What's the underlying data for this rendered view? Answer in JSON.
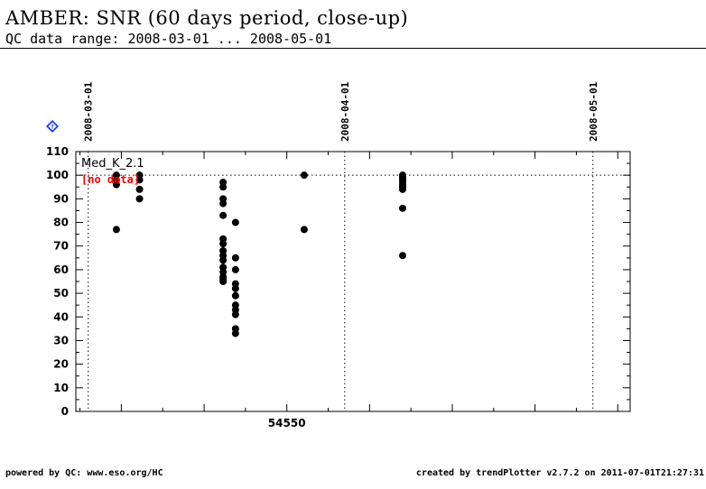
{
  "header": {
    "title": "AMBER: SNR (60 days period, close-up)",
    "subtitle": "QC data range: 2008-03-01 ... 2008-05-01"
  },
  "footer": {
    "left": "powered by QC: www.eso.org/HC",
    "right": "created by trendPlotter v2.7.2 on 2011-07-01T21:27:31"
  },
  "colors": {
    "points": "#000000",
    "nodata": "#ff0000",
    "help_icon": "#1a3cff"
  },
  "icons": {
    "help": "help-diamond-icon"
  },
  "chart_data": {
    "type": "scatter",
    "xlim": [
      54524.5,
      54591.5
    ],
    "ylim": [
      0,
      110
    ],
    "yticks": [
      0,
      10,
      20,
      30,
      40,
      50,
      60,
      70,
      80,
      90,
      100,
      110
    ],
    "xticks": [
      54550
    ],
    "xtick_labels": [
      "54550"
    ],
    "reference_line_y": 100,
    "date_markers": [
      {
        "x": 54526.0,
        "label": "2008-03-01"
      },
      {
        "x": 54557.0,
        "label": "2008-04-01"
      },
      {
        "x": 54587.0,
        "label": "2008-05-01"
      }
    ],
    "series": [
      {
        "name": "Med_K_2.1",
        "note": "[no data]",
        "points": [
          [
            54529.4,
            100
          ],
          [
            54529.4,
            98
          ],
          [
            54529.4,
            96
          ],
          [
            54529.4,
            77
          ],
          [
            54532.2,
            100
          ],
          [
            54532.2,
            98
          ],
          [
            54532.2,
            94
          ],
          [
            54532.2,
            90
          ],
          [
            54542.3,
            97
          ],
          [
            54542.3,
            95
          ],
          [
            54542.3,
            90
          ],
          [
            54542.3,
            88
          ],
          [
            54542.3,
            83
          ],
          [
            54542.3,
            73
          ],
          [
            54542.3,
            71
          ],
          [
            54542.3,
            68
          ],
          [
            54542.3,
            66
          ],
          [
            54542.3,
            64
          ],
          [
            54542.3,
            61
          ],
          [
            54542.3,
            59
          ],
          [
            54542.3,
            57
          ],
          [
            54542.3,
            56
          ],
          [
            54542.3,
            55
          ],
          [
            54543.8,
            80
          ],
          [
            54543.8,
            65
          ],
          [
            54543.8,
            60
          ],
          [
            54543.8,
            54
          ],
          [
            54543.8,
            52
          ],
          [
            54543.8,
            49
          ],
          [
            54543.8,
            45
          ],
          [
            54543.8,
            43
          ],
          [
            54543.8,
            41
          ],
          [
            54543.8,
            35
          ],
          [
            54543.8,
            33
          ],
          [
            54552.1,
            100
          ],
          [
            54552.1,
            77
          ],
          [
            54564.0,
            100
          ],
          [
            54564.0,
            99
          ],
          [
            54564.0,
            98
          ],
          [
            54564.0,
            97
          ],
          [
            54564.0,
            96
          ],
          [
            54564.0,
            95
          ],
          [
            54564.0,
            94
          ],
          [
            54564.0,
            86
          ],
          [
            54564.0,
            66
          ]
        ]
      }
    ]
  }
}
